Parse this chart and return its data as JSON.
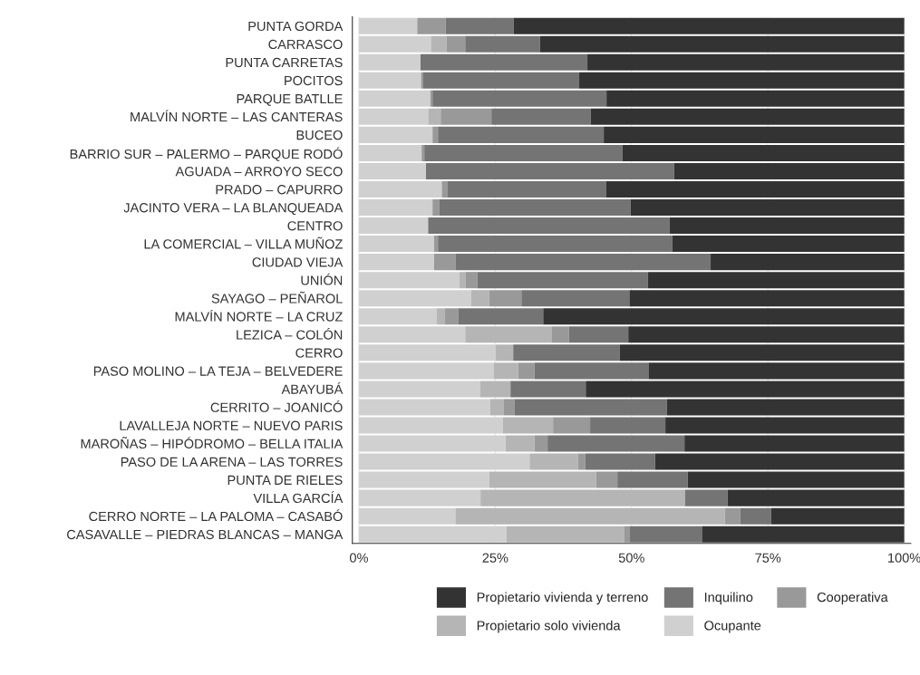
{
  "chart_data": {
    "type": "bar",
    "orientation": "horizontal",
    "stacked": true,
    "categories": [
      "PUNTA GORDA",
      "CARRASCO",
      "PUNTA CARRETAS",
      "POCITOS",
      "PARQUE BATLLE",
      "MALVÍN NORTE – LAS CANTERAS",
      "BUCEO",
      "BARRIO SUR – PALERMO – PARQUE RODÓ",
      "AGUADA – ARROYO SECO",
      "PRADO – CAPURRO",
      "JACINTO VERA – LA BLANQUEADA",
      "CENTRO",
      "LA COMERCIAL – VILLA MUÑOZ",
      "CIUDAD VIEJA",
      "UNIÓN",
      "SAYAGO – PEÑAROL",
      "MALVÍN NORTE – LA CRUZ",
      "LEZICA – COLÓN",
      "CERRO",
      "PASO MOLINO – LA TEJA – BELVEDERE",
      "ABAYUBÁ",
      "CERRITO – JOANICÓ",
      "LAVALLEJA NORTE – NUEVO PARIS",
      "MAROÑAS – HIPÓDROMO – BELLA ITALIA",
      "PASO DE LA ARENA – LAS TORRES",
      "PUNTA DE RIELES",
      "VILLA GARCÍA",
      "CERRO NORTE – LA PALOMA – CASABÓ",
      "CASAVALLE – PIEDRAS BLANCAS – MANGA"
    ],
    "series": [
      {
        "name": "Ocupante",
        "color": "#d0d0d0",
        "values": [
          10.7,
          13.2,
          11.3,
          11.4,
          13.1,
          12.7,
          13.5,
          11.5,
          12.3,
          15.2,
          13.5,
          12.7,
          13.8,
          13.8,
          18.4,
          20.6,
          14.3,
          19.5,
          25.1,
          24.7,
          22.2,
          24.1,
          26.4,
          26.9,
          31.3,
          23.9,
          22.3,
          17.7,
          27.1
        ]
      },
      {
        "name": "Propietario solo vivienda",
        "color": "#b5b5b5",
        "values": [
          0,
          2.9,
          0,
          0,
          0,
          2.3,
          0,
          0,
          0,
          0,
          0,
          0,
          0,
          0,
          1.2,
          3.3,
          1.5,
          15.8,
          3.2,
          4.5,
          5.6,
          2.4,
          9.2,
          5.3,
          8.9,
          19.6,
          37.5,
          49.4,
          21.5
        ]
      },
      {
        "name": "Cooperativa",
        "color": "#999999",
        "values": [
          5.2,
          3.4,
          0,
          0.4,
          0.4,
          9.3,
          1.0,
          0.5,
          0,
          1.1,
          1.2,
          0,
          0.7,
          3.9,
          2.1,
          5.9,
          2.4,
          3.2,
          0,
          3.0,
          0,
          2.0,
          6.8,
          2.4,
          1.3,
          3.9,
          0,
          2.8,
          1.0
        ]
      },
      {
        "name": "Inquilino",
        "color": "#747474",
        "values": [
          12.5,
          13.7,
          30.6,
          28.6,
          31.9,
          18.2,
          30.4,
          36.3,
          45.5,
          29.0,
          35.1,
          44.3,
          43.0,
          46.8,
          31.3,
          19.8,
          15.6,
          10.9,
          19.5,
          20.9,
          13.8,
          28.0,
          13.8,
          25.1,
          12.8,
          12.9,
          7.8,
          5.7,
          13.3
        ]
      },
      {
        "name": "Propietario vivienda y terreno",
        "color": "#333333",
        "values": [
          71.6,
          66.8,
          58.1,
          59.6,
          54.6,
          57.5,
          55.1,
          51.7,
          42.2,
          54.7,
          50.2,
          43.0,
          42.5,
          35.5,
          47.0,
          50.4,
          66.2,
          50.6,
          52.2,
          46.9,
          58.4,
          43.5,
          43.8,
          40.3,
          45.7,
          39.7,
          32.4,
          24.4,
          37.1
        ]
      }
    ],
    "xlim": [
      -1.2,
      101.2
    ],
    "xticks": [
      {
        "value": 0,
        "label": "0%"
      },
      {
        "value": 25,
        "label": "25%"
      },
      {
        "value": 50,
        "label": "50%"
      },
      {
        "value": 75,
        "label": "75%"
      },
      {
        "value": 100,
        "label": "100%"
      }
    ],
    "grid": "x",
    "legend": "bottom"
  }
}
